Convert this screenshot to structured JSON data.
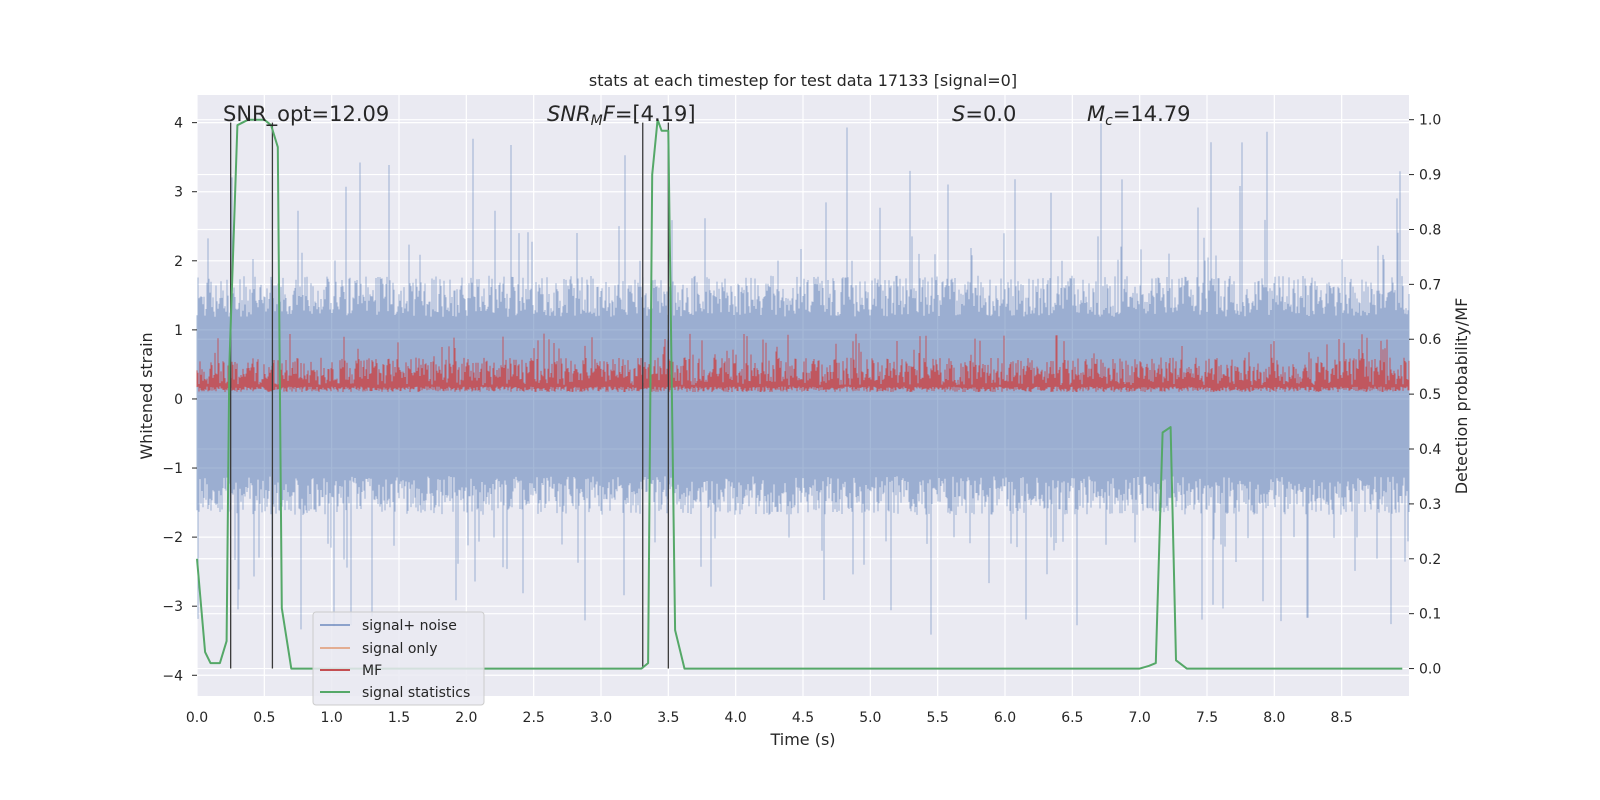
{
  "chart_data": {
    "type": "line",
    "title": "stats at each timestep for test data 17133 [signal=0]",
    "xlabel": "Time (s)",
    "ylabel_left": "Whitened strain",
    "ylabel_right": "Detection probability/MF",
    "xlim": [
      0.0,
      9.0
    ],
    "ylim_left": [
      -4.3,
      4.4
    ],
    "ylim_right": [
      -0.05,
      1.045
    ],
    "x_ticks": [
      "0.0",
      "0.5",
      "1.0",
      "1.5",
      "2.0",
      "2.5",
      "3.0",
      "3.5",
      "4.0",
      "4.5",
      "5.0",
      "5.5",
      "6.0",
      "6.5",
      "7.0",
      "7.5",
      "8.0",
      "8.5"
    ],
    "y_left_ticks": [
      "4",
      "3",
      "2",
      "1",
      "0",
      "−1",
      "−2",
      "−3",
      "−4"
    ],
    "y_right_ticks": [
      "1.0",
      "0.9",
      "0.8",
      "0.7",
      "0.6",
      "0.5",
      "0.4",
      "0.3",
      "0.2",
      "0.1",
      "0.0"
    ],
    "grid": true,
    "legend_position": "lower-left",
    "annotations": {
      "snr_opt": "SNR_opt=12.09",
      "snr_mf_name": "SNR",
      "snr_mf_sub": "M",
      "snr_mf_mid": "F",
      "snr_mf_value": "=[4.19]",
      "s_name": "S",
      "s_value": "=0.0",
      "mc_name": "M",
      "mc_sub": "c",
      "mc_value": "=14.79"
    },
    "series": [
      {
        "name": "signal+ noise",
        "color": "#4c72b0",
        "axis": "left",
        "envelope": {
          "upper_typical": 1.7,
          "lower_typical": -1.6,
          "peak_max": 4.0,
          "peak_min": -3.5
        }
      },
      {
        "name": "signal only",
        "color": "#dd8452",
        "axis": "left",
        "values": []
      },
      {
        "name": "MF",
        "color": "#c44e52",
        "axis": "left",
        "envelope": {
          "base": 0.1,
          "typical_top": 0.6,
          "peak_max": 0.95
        }
      },
      {
        "name": "signal statistics",
        "color": "#55a868",
        "axis": "right",
        "x": [
          0.0,
          0.06,
          0.1,
          0.17,
          0.22,
          0.24,
          0.3,
          0.38,
          0.45,
          0.5,
          0.55,
          0.6,
          0.63,
          0.7,
          1.0,
          2.0,
          3.0,
          3.3,
          3.35,
          3.38,
          3.42,
          3.45,
          3.5,
          3.55,
          3.62,
          4.0,
          5.0,
          6.0,
          7.0,
          7.07,
          7.12,
          7.17,
          7.23,
          7.27,
          7.35,
          8.0,
          8.95
        ],
        "values": [
          0.2,
          0.03,
          0.01,
          0.01,
          0.05,
          0.55,
          0.99,
          1.0,
          1.0,
          1.0,
          0.99,
          0.95,
          0.11,
          0.0,
          0.0,
          0.0,
          0.0,
          0.0,
          0.01,
          0.9,
          1.0,
          0.98,
          0.98,
          0.07,
          0.0,
          0.0,
          0.0,
          0.0,
          0.0,
          0.005,
          0.01,
          0.43,
          0.44,
          0.015,
          0.0,
          0.0,
          0.0
        ]
      }
    ],
    "vertical_markers": [
      0.25,
      0.56,
      3.31,
      3.5
    ],
    "colors": {
      "background": "#eaeaf2",
      "grid": "#ffffff",
      "marker": "#3a3a3a"
    }
  }
}
